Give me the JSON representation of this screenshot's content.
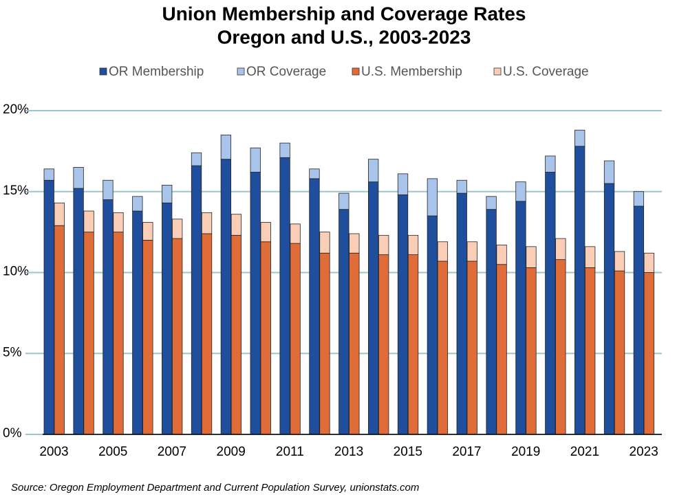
{
  "chart_data": {
    "type": "bar",
    "title": "Union Membership and Coverage Rates",
    "subtitle": "Oregon and U.S., 2003-2023",
    "source": "Source: Oregon Employment Department and Current Population Survey, unionstats.com",
    "categories": [
      "2003",
      null,
      "2005",
      null,
      "2007",
      null,
      "2009",
      null,
      "2011",
      null,
      "2013",
      null,
      "2015",
      null,
      "2017",
      null,
      "2019",
      null,
      "2021",
      null,
      "2023"
    ],
    "series": [
      {
        "name": "OR Membership",
        "color": "#1f4e9c",
        "values": [
          15.7,
          15.2,
          14.5,
          13.8,
          14.3,
          16.6,
          17.0,
          16.2,
          17.1,
          15.8,
          13.9,
          15.6,
          14.8,
          13.5,
          14.9,
          13.9,
          14.4,
          16.2,
          17.8,
          15.5,
          14.1
        ]
      },
      {
        "name": "OR Coverage",
        "color": "#a9c4ea",
        "values": [
          0.7,
          1.3,
          1.2,
          0.9,
          1.1,
          0.8,
          1.5,
          1.5,
          0.9,
          0.6,
          1.0,
          1.4,
          1.3,
          2.3,
          0.8,
          0.8,
          1.2,
          1.0,
          1.0,
          1.4,
          0.9
        ]
      },
      {
        "name": "U.S. Membership",
        "color": "#e06c3a",
        "values": [
          12.9,
          12.5,
          12.5,
          12.0,
          12.1,
          12.4,
          12.3,
          11.9,
          11.8,
          11.2,
          11.2,
          11.1,
          11.1,
          10.7,
          10.7,
          10.5,
          10.3,
          10.8,
          10.3,
          10.1,
          10.0
        ]
      },
      {
        "name": "U.S. Coverage",
        "color": "#f9cdb6",
        "values": [
          1.4,
          1.3,
          1.2,
          1.1,
          1.2,
          1.3,
          1.3,
          1.2,
          1.2,
          1.3,
          1.2,
          1.2,
          1.2,
          1.2,
          1.2,
          1.2,
          1.3,
          1.3,
          1.3,
          1.2,
          1.2
        ]
      }
    ],
    "ylim": [
      0,
      20
    ],
    "yticks": [
      {
        "value": 0,
        "label": "0%"
      },
      {
        "value": 5,
        "label": "5%"
      },
      {
        "value": 10,
        "label": "10%"
      },
      {
        "value": 15,
        "label": "15%"
      },
      {
        "value": 20,
        "label": "20%"
      }
    ],
    "grid": true,
    "legend": "top"
  }
}
